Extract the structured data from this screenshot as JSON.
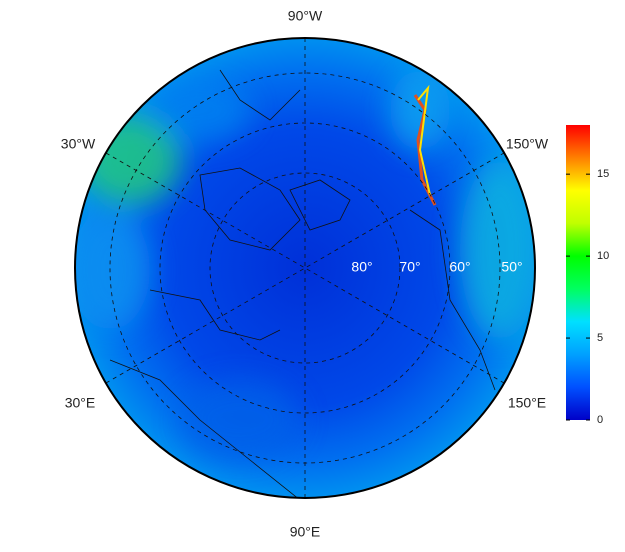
{
  "map": {
    "longitude_labels": [
      "90°W",
      "30°W",
      "150°W",
      "30°E",
      "150°E",
      "90°E"
    ],
    "latitude_labels": [
      "80°",
      "70°",
      "60°",
      "50°"
    ]
  },
  "colorbar": {
    "lim": [
      0,
      18
    ],
    "ticks": [
      0,
      5,
      10,
      15
    ],
    "colors": [
      "#0000c8",
      "#0050ff",
      "#00a0ff",
      "#00e0ff",
      "#00ff60",
      "#00ff00",
      "#c0ff00",
      "#ffff00",
      "#ff8000",
      "#ff0000"
    ]
  }
}
